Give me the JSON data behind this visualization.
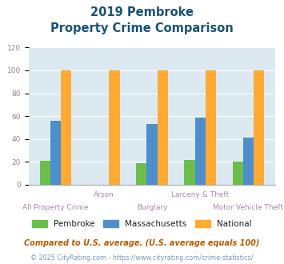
{
  "title_line1": "2019 Pembroke",
  "title_line2": "Property Crime Comparison",
  "categories": [
    "All Property Crime",
    "Arson",
    "Burglary",
    "Larceny & Theft",
    "Motor Vehicle Theft"
  ],
  "pembroke": [
    21,
    0,
    19,
    22,
    20
  ],
  "massachusetts": [
    56,
    0,
    53,
    59,
    41
  ],
  "national": [
    100,
    100,
    100,
    100,
    100
  ],
  "pembroke_color": "#6abf4b",
  "massachusetts_color": "#4d8fcc",
  "national_color": "#ffaa33",
  "ylim": [
    0,
    120
  ],
  "yticks": [
    0,
    20,
    40,
    60,
    80,
    100,
    120
  ],
  "bg_color": "#dce9f0",
  "fig_bg": "#ffffff",
  "footnote1": "Compared to U.S. average. (U.S. average equals 100)",
  "footnote2": "© 2025 CityRating.com - https://www.cityrating.com/crime-statistics/",
  "title_color": "#1a5276",
  "footnote1_color": "#b85c00",
  "footnote2_color": "#7799bb",
  "tick_color": "#aa88aa",
  "label_row1_color": "#aa88aa",
  "label_row2_color": "#aa88aa",
  "ytick_color": "#888899",
  "grid_color": "#ffffff",
  "legend_label_color": "#222222",
  "bar_width": 0.22
}
